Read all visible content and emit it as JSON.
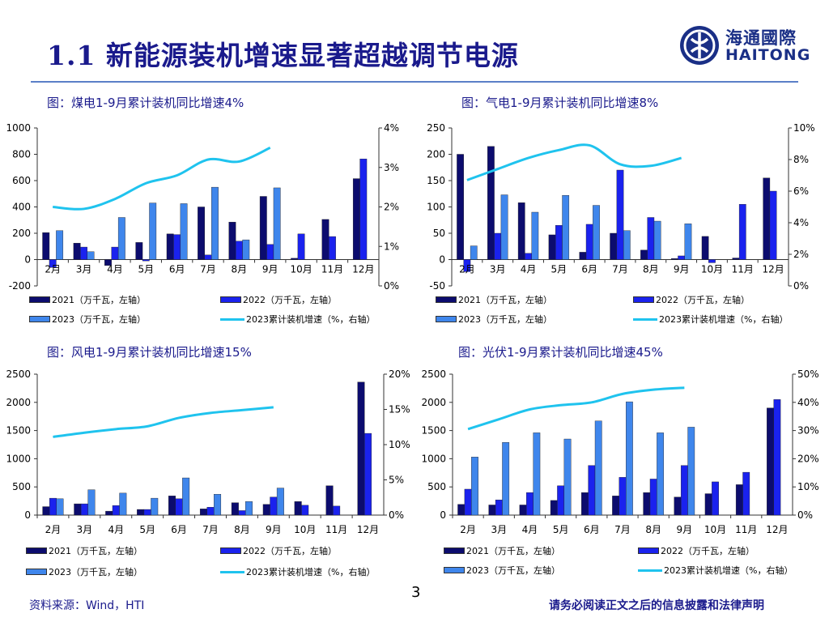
{
  "header": {
    "title": "1.1 新能源装机增速显著超越调节电源"
  },
  "logo": {
    "cn": "海通國際",
    "en": "HAITONG"
  },
  "colors": {
    "s2021": "#0c0c6e",
    "s2022": "#1a22ee",
    "s2023": "#3f86ec",
    "line": "#1fc3ee",
    "title": "#1a1a8c"
  },
  "legend_labels": {
    "s2021": "2021（万千瓦，左轴）",
    "s2022": "2022（万千瓦，左轴）",
    "s2023": "2023（万千瓦，左轴）",
    "line": "2023累计装机增速（%，右轴）"
  },
  "footer": {
    "page": "3",
    "source": "资料来源：Wind，HTI",
    "disclaimer": "请务必阅读正文之后的信息披露和法律声明"
  },
  "chart_data": [
    {
      "type": "bar",
      "title": "图：煤电1-9月累计装机同比增速4%",
      "categories": [
        "2月",
        "3月",
        "4月",
        "5月",
        "6月",
        "7月",
        "8月",
        "9月",
        "10月",
        "11月",
        "12月"
      ],
      "ylim": [
        -200,
        1000
      ],
      "yticks": [
        -200,
        0,
        200,
        400,
        600,
        800,
        1000
      ],
      "y2lim": [
        0,
        4
      ],
      "y2ticks": [
        0,
        1,
        2,
        3,
        4
      ],
      "y2tick_labels": [
        "0%",
        "1%",
        "2%",
        "3%",
        "4%"
      ],
      "series": [
        {
          "name": "2021（万千瓦，左轴）",
          "values": [
            205,
            125,
            -45,
            130,
            195,
            400,
            285,
            480,
            10,
            305,
            615
          ]
        },
        {
          "name": "2022（万千瓦，左轴）",
          "values": [
            -60,
            95,
            95,
            -10,
            190,
            35,
            140,
            115,
            195,
            175,
            765
          ]
        },
        {
          "name": "2023（万千瓦，左轴）",
          "values": [
            220,
            60,
            320,
            430,
            425,
            550,
            150,
            545,
            null,
            null,
            null
          ]
        }
      ],
      "line": {
        "name": "2023累计装机增速（%，右轴）",
        "values": [
          2.0,
          1.95,
          2.2,
          2.6,
          2.8,
          3.2,
          3.15,
          3.5
        ]
      }
    },
    {
      "type": "bar",
      "title": "图：气电1-9月累计装机同比增速8%",
      "categories": [
        "2月",
        "3月",
        "4月",
        "5月",
        "6月",
        "7月",
        "8月",
        "9月",
        "10月",
        "11月",
        "12月"
      ],
      "ylim": [
        -50,
        250
      ],
      "yticks": [
        -50,
        0,
        50,
        100,
        150,
        200,
        250
      ],
      "y2lim": [
        0,
        10
      ],
      "y2ticks": [
        0,
        2,
        4,
        6,
        8,
        10
      ],
      "y2tick_labels": [
        "0%",
        "2%",
        "4%",
        "6%",
        "8%",
        "10%"
      ],
      "series": [
        {
          "name": "2021（万千瓦，左轴）",
          "values": [
            200,
            215,
            108,
            47,
            14,
            50,
            18,
            2,
            44,
            3,
            155
          ]
        },
        {
          "name": "2022（万千瓦，左轴）",
          "values": [
            -23,
            50,
            12,
            65,
            67,
            170,
            80,
            7,
            -6,
            105,
            130
          ]
        },
        {
          "name": "2023（万千瓦，左轴）",
          "values": [
            26,
            123,
            90,
            122,
            103,
            55,
            73,
            68,
            null,
            null,
            null
          ]
        }
      ],
      "line": {
        "name": "2023累计装机增速（%，右轴）",
        "values": [
          6.7,
          7.4,
          8.1,
          8.6,
          8.9,
          7.7,
          7.6,
          8.1
        ]
      }
    },
    {
      "type": "bar",
      "title": "图：风电1-9月累计装机同比增速15%",
      "categories": [
        "2月",
        "3月",
        "4月",
        "5月",
        "6月",
        "7月",
        "8月",
        "9月",
        "10月",
        "11月",
        "12月"
      ],
      "ylim": [
        0,
        2500
      ],
      "yticks": [
        0,
        500,
        1000,
        1500,
        2000,
        2500
      ],
      "y2lim": [
        0,
        20
      ],
      "y2ticks": [
        0,
        5,
        10,
        15,
        20
      ],
      "y2tick_labels": [
        "0%",
        "5%",
        "10%",
        "15%",
        "20%"
      ],
      "series": [
        {
          "name": "2021（万千瓦，左轴）",
          "values": [
            150,
            200,
            70,
            100,
            340,
            110,
            220,
            190,
            240,
            520,
            2360
          ]
        },
        {
          "name": "2022（万千瓦，左轴）",
          "values": [
            300,
            200,
            170,
            100,
            290,
            140,
            80,
            320,
            175,
            160,
            1450
          ]
        },
        {
          "name": "2023（万千瓦，左轴）",
          "values": [
            290,
            450,
            390,
            300,
            660,
            370,
            240,
            480,
            null,
            null,
            null
          ]
        }
      ],
      "line": {
        "name": "2023累计装机增速（%，右轴）",
        "values": [
          11.1,
          11.7,
          12.2,
          12.6,
          13.8,
          14.5,
          14.9,
          15.3
        ]
      }
    },
    {
      "type": "bar",
      "title": "图：光伏1-9月累计装机同比增速45%",
      "categories": [
        "2月",
        "3月",
        "4月",
        "5月",
        "6月",
        "7月",
        "8月",
        "9月",
        "10月",
        "11月",
        "12月"
      ],
      "ylim": [
        0,
        2500
      ],
      "yticks": [
        0,
        500,
        1000,
        1500,
        2000,
        2500
      ],
      "y2lim": [
        0,
        50
      ],
      "y2ticks": [
        0,
        10,
        20,
        30,
        40,
        50
      ],
      "y2tick_labels": [
        "0%",
        "10%",
        "20%",
        "30%",
        "40%",
        "50%"
      ],
      "series": [
        {
          "name": "2021（万千瓦，左轴）",
          "values": [
            190,
            180,
            180,
            260,
            400,
            340,
            400,
            320,
            380,
            540,
            1900
          ]
        },
        {
          "name": "2022（万千瓦，左轴）",
          "values": [
            460,
            270,
            400,
            520,
            880,
            670,
            640,
            880,
            590,
            760,
            2050
          ]
        },
        {
          "name": "2023（万千瓦，左轴）",
          "values": [
            1030,
            1290,
            1460,
            1350,
            1670,
            2010,
            1460,
            1560,
            null,
            null,
            null
          ]
        }
      ],
      "line": {
        "name": "2023累计装机增速（%，右轴）",
        "values": [
          30.5,
          34,
          37.5,
          39,
          40,
          43,
          44.5,
          45.2
        ]
      }
    }
  ]
}
